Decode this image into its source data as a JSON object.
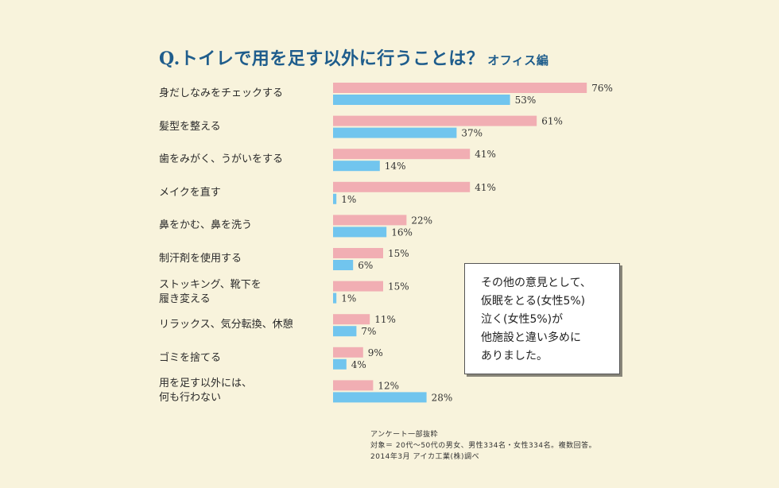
{
  "title": "Q.トイレで用を足す以外に行うことは？",
  "subtitle": "オフィス編",
  "colors": {
    "series1": "#f1aeb3",
    "series2": "#71c5ee",
    "title": "#1f5d8c",
    "background": "#f8f3dc"
  },
  "chart_data": {
    "type": "bar",
    "orientation": "horizontal",
    "title": "Q.トイレで用を足す以外に行うことは？ オフィス編",
    "categories": [
      "身だしなみをチェックする",
      "髪型を整える",
      "歯をみがく、うがいをする",
      "メイクを直す",
      "鼻をかむ、鼻を洗う",
      "制汗剤を使用する",
      "ストッキング、靴下を\n履き変える",
      "リラックス、気分転換、休憩",
      "ゴミを捨てる",
      "用を足す以外には、\n何も行わない"
    ],
    "series": [
      {
        "values": [
          76,
          61,
          41,
          41,
          22,
          15,
          15,
          11,
          9,
          12
        ],
        "labels": [
          "76%",
          "61%",
          "41%",
          "41%",
          "22%",
          "15%",
          "15%",
          "11%",
          "9%",
          "12%"
        ]
      },
      {
        "values": [
          53,
          37,
          14,
          1,
          16,
          6,
          1,
          7,
          4,
          28
        ],
        "labels": [
          "53%",
          "37%",
          "14%",
          "1%",
          "16%",
          "6%",
          "1%",
          "7%",
          "4%",
          "28%"
        ]
      }
    ],
    "xlim": [
      0,
      100
    ],
    "grid": false,
    "legend": "none"
  },
  "note": "その他の意見として、\n仮眠をとる(女性5%)\n泣く(女性5%)が\n他施設と違い多めに\nありました。",
  "footnote": "アンケート一部抜粋\n対象＝ 20代～50代の男女、男性334名・女性334名。複数回答。\n2014年3月 アイカ工業(株)調べ"
}
